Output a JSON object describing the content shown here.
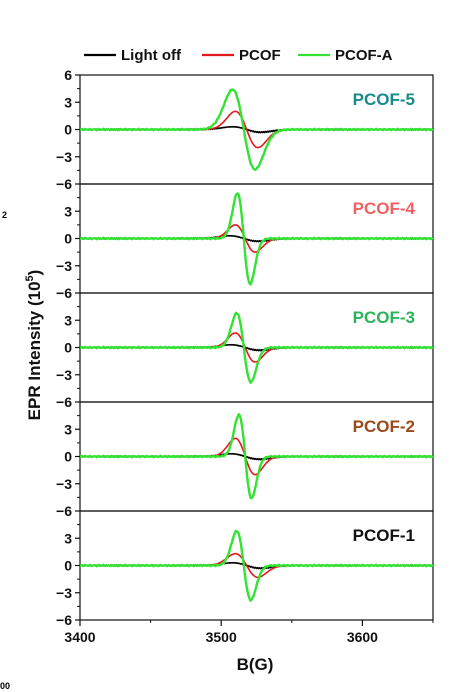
{
  "chart_data": {
    "type": "line",
    "title": "",
    "xlabel": "B(G)",
    "ylabel": "EPR Intensity (10",
    "ylabel_sup": "5",
    "ylabel_close": ")",
    "xlim": [
      3400,
      3650
    ],
    "xticks": [
      3400,
      3500,
      3600
    ],
    "ylim": [
      -6,
      6
    ],
    "yticks": [
      6,
      3,
      0,
      -3,
      -6
    ],
    "grid": false,
    "legend_position": "top",
    "legend": [
      {
        "name": "Light off",
        "color": "#000000"
      },
      {
        "name": "PCOF",
        "color": "#e31a1c"
      },
      {
        "name": "PCOF-A",
        "color": "#33e233"
      }
    ],
    "panels": [
      {
        "label": "PCOF-5",
        "label_color": "#178a8a",
        "series": [
          {
            "name": "Light off",
            "center": 3518,
            "width": 10,
            "amplitude": 0.3
          },
          {
            "name": "PCOF",
            "center": 3518,
            "width": 8,
            "amplitude": 2.0
          },
          {
            "name": "PCOF-A",
            "center": 3516,
            "width": 8,
            "amplitude": 4.4
          }
        ]
      },
      {
        "label": "PCOF-4",
        "label_color": "#f06262",
        "series": [
          {
            "name": "Light off",
            "center": 3516,
            "width": 10,
            "amplitude": 0.3
          },
          {
            "name": "PCOF",
            "center": 3517,
            "width": 7,
            "amplitude": 1.5
          },
          {
            "name": "PCOF-A",
            "center": 3516,
            "width": 4.5,
            "amplitude": 5.0
          }
        ]
      },
      {
        "label": "PCOF-3",
        "label_color": "#2db35a",
        "series": [
          {
            "name": "Light off",
            "center": 3517,
            "width": 10,
            "amplitude": 0.3
          },
          {
            "name": "PCOF",
            "center": 3517,
            "width": 7,
            "amplitude": 1.6
          },
          {
            "name": "PCOF-A",
            "center": 3516,
            "width": 5,
            "amplitude": 3.8
          }
        ]
      },
      {
        "label": "PCOF-2",
        "label_color": "#9a4a1a",
        "series": [
          {
            "name": "Light off",
            "center": 3517,
            "width": 10,
            "amplitude": 0.3
          },
          {
            "name": "PCOF",
            "center": 3517,
            "width": 7,
            "amplitude": 2.0
          },
          {
            "name": "PCOF-A",
            "center": 3517,
            "width": 4.5,
            "amplitude": 4.6
          }
        ]
      },
      {
        "label": "PCOF-1",
        "label_color": "#111111",
        "series": [
          {
            "name": "Light off",
            "center": 3518,
            "width": 10,
            "amplitude": 0.3
          },
          {
            "name": "PCOF",
            "center": 3518,
            "width": 8,
            "amplitude": 1.3
          },
          {
            "name": "PCOF-A",
            "center": 3516,
            "width": 5,
            "amplitude": 3.8
          }
        ]
      }
    ]
  },
  "edge_text": {
    "left_mid": "2",
    "bottom_left": "00"
  }
}
